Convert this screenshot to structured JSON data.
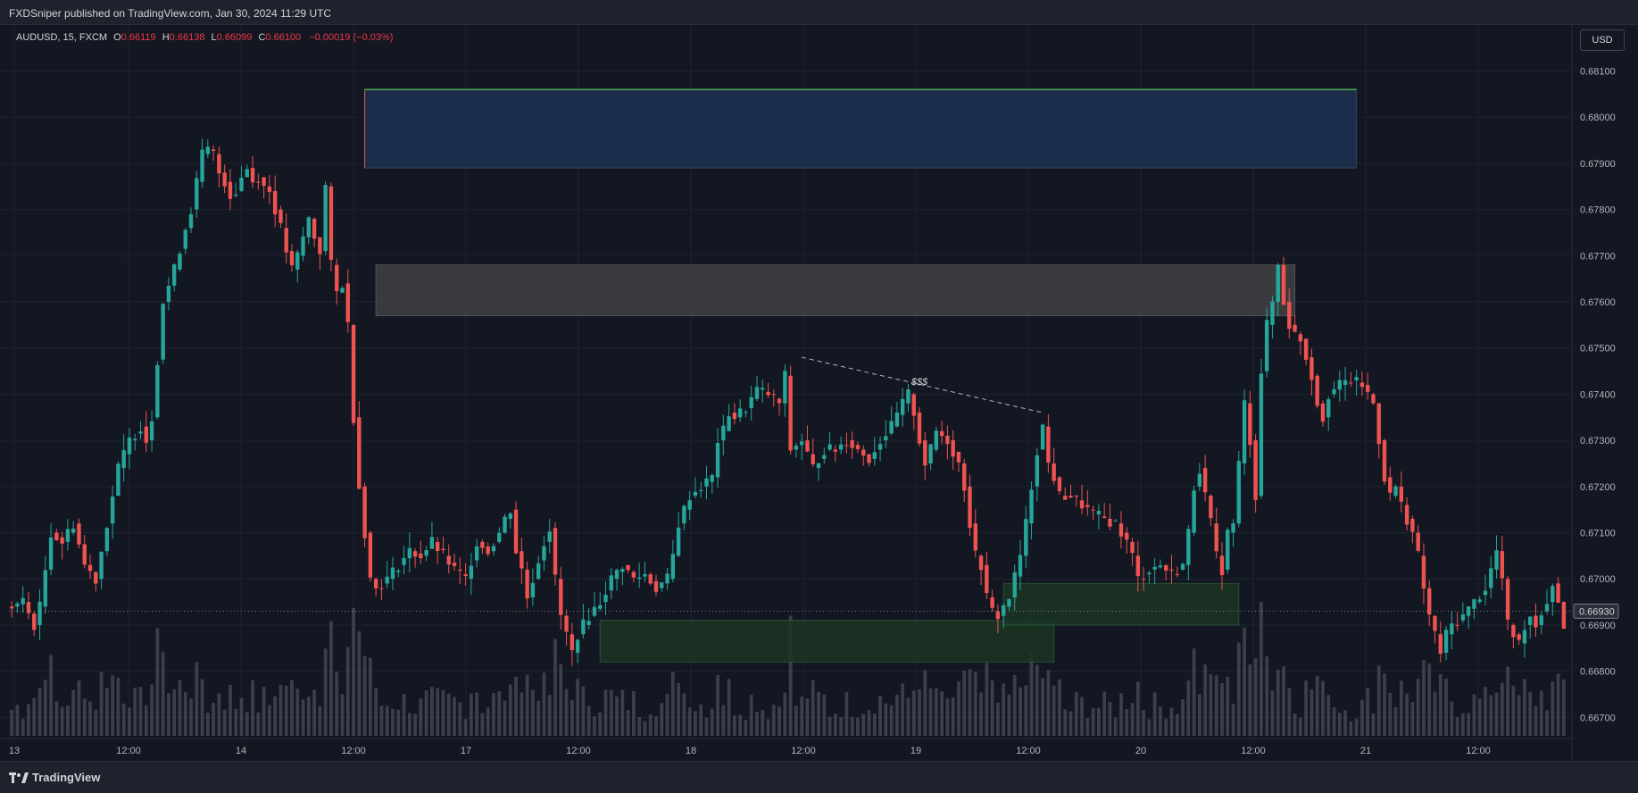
{
  "header": {
    "published_text": "FXDSniper published on TradingView.com, Jan 30, 2024 11:29 UTC"
  },
  "legend": {
    "symbol": "AUDUSD, 15, FXCM",
    "o_label": "O",
    "o_value": "0.66119",
    "h_label": "H",
    "h_value": "0.66138",
    "l_label": "L",
    "l_value": "0.66099",
    "c_label": "C",
    "c_value": "0.66100",
    "change": "−0.00019 (−0.03%)"
  },
  "currency_button": "USD",
  "footer": {
    "brand": "TradingView"
  },
  "colors": {
    "background": "#131722",
    "grid": "#1f2330",
    "up": "#26a69a",
    "down": "#ef5350",
    "volume": "#5d606b",
    "supply_zone_fill": "#1e3050",
    "supply_zone_border": "#4caf50",
    "gray_zone_fill": "#4a4a4a",
    "demand_zone_fill": "#1b3524",
    "trendline": "#b2b5be",
    "price_label_bg": "#2a2e39"
  },
  "chart_data": {
    "type": "candlestick",
    "symbol": "AUDUSD",
    "timeframe": "15",
    "y_range": [
      0.6666,
      0.6819
    ],
    "y_ticks": [
      "0.68100",
      "0.68000",
      "0.67900",
      "0.67800",
      "0.67700",
      "0.67600",
      "0.67500",
      "0.67400",
      "0.67300",
      "0.67200",
      "0.67100",
      "0.67000",
      "0.66900",
      "0.66800",
      "0.66700"
    ],
    "x_ticks": [
      "13",
      "12:00",
      "14",
      "12:00",
      "17",
      "12:00",
      "18",
      "12:00",
      "19",
      "12:00",
      "20",
      "12:00",
      "21",
      "12:00"
    ],
    "current_price": "0.66930",
    "path_points": [
      [
        0,
        0.6694
      ],
      [
        2,
        0.6695
      ],
      [
        4,
        0.669
      ],
      [
        5,
        0.6694
      ],
      [
        7,
        0.671
      ],
      [
        9,
        0.6708
      ],
      [
        11,
        0.6712
      ],
      [
        13,
        0.6703
      ],
      [
        15,
        0.67
      ],
      [
        17,
        0.6712
      ],
      [
        19,
        0.6724
      ],
      [
        21,
        0.673
      ],
      [
        23,
        0.6733
      ],
      [
        24,
        0.673
      ],
      [
        25,
        0.6735
      ],
      [
        27,
        0.676
      ],
      [
        29,
        0.6767
      ],
      [
        31,
        0.6776
      ],
      [
        32,
        0.678
      ],
      [
        33,
        0.6786
      ],
      [
        34,
        0.6792
      ],
      [
        35,
        0.6793
      ],
      [
        36,
        0.6792
      ],
      [
        37,
        0.6788
      ],
      [
        38,
        0.6786
      ],
      [
        39,
        0.6783
      ],
      [
        40,
        0.6784
      ],
      [
        41,
        0.6787
      ],
      [
        42,
        0.6789
      ],
      [
        43,
        0.6786
      ],
      [
        44,
        0.6787
      ],
      [
        45,
        0.6785
      ],
      [
        46,
        0.6784
      ],
      [
        47,
        0.678
      ],
      [
        48,
        0.6776
      ],
      [
        49,
        0.6771
      ],
      [
        50,
        0.6767
      ],
      [
        51,
        0.677
      ],
      [
        52,
        0.6774
      ],
      [
        53,
        0.6778
      ],
      [
        54,
        0.6774
      ],
      [
        55,
        0.6771
      ],
      [
        56,
        0.6785
      ],
      [
        57,
        0.6768
      ],
      [
        58,
        0.6762
      ],
      [
        59,
        0.6764
      ],
      [
        60,
        0.6755
      ],
      [
        61,
        0.6735
      ],
      [
        62,
        0.672
      ],
      [
        63,
        0.671
      ],
      [
        64,
        0.67
      ],
      [
        65,
        0.6698
      ],
      [
        67,
        0.67
      ],
      [
        69,
        0.6703
      ],
      [
        71,
        0.6706
      ],
      [
        73,
        0.6705
      ],
      [
        75,
        0.6708
      ],
      [
        77,
        0.6705
      ],
      [
        79,
        0.6702
      ],
      [
        81,
        0.67
      ],
      [
        83,
        0.6708
      ],
      [
        85,
        0.6706
      ],
      [
        87,
        0.671
      ],
      [
        88,
        0.6713
      ],
      [
        89,
        0.6715
      ],
      [
        90,
        0.6706
      ],
      [
        91,
        0.6702
      ],
      [
        92,
        0.6696
      ],
      [
        93,
        0.67
      ],
      [
        95,
        0.6708
      ],
      [
        96,
        0.6711
      ],
      [
        97,
        0.67
      ],
      [
        98,
        0.6692
      ],
      [
        99,
        0.6688
      ],
      [
        100,
        0.6684
      ],
      [
        101,
        0.6688
      ],
      [
        103,
        0.6692
      ],
      [
        105,
        0.6695
      ],
      [
        107,
        0.67
      ],
      [
        109,
        0.6703
      ],
      [
        111,
        0.67
      ],
      [
        113,
        0.6701
      ],
      [
        115,
        0.6698
      ],
      [
        117,
        0.67
      ],
      [
        118,
        0.6705
      ],
      [
        119,
        0.6712
      ],
      [
        121,
        0.6718
      ],
      [
        123,
        0.672
      ],
      [
        125,
        0.6722
      ],
      [
        126,
        0.673
      ],
      [
        127,
        0.6732
      ],
      [
        128,
        0.6736
      ],
      [
        129,
        0.6735
      ],
      [
        131,
        0.6737
      ],
      [
        133,
        0.6741
      ],
      [
        135,
        0.674
      ],
      [
        137,
        0.6738
      ],
      [
        138,
        0.6744
      ],
      [
        139,
        0.6728
      ],
      [
        141,
        0.673
      ],
      [
        143,
        0.6724
      ],
      [
        145,
        0.6728
      ],
      [
        147,
        0.6728
      ],
      [
        149,
        0.673
      ],
      [
        151,
        0.6728
      ],
      [
        153,
        0.6726
      ],
      [
        155,
        0.673
      ],
      [
        157,
        0.6733
      ],
      [
        159,
        0.6738
      ],
      [
        160,
        0.674
      ],
      [
        161,
        0.6736
      ],
      [
        162,
        0.673
      ],
      [
        163,
        0.6725
      ],
      [
        164,
        0.6728
      ],
      [
        165,
        0.6732
      ],
      [
        167,
        0.673
      ],
      [
        169,
        0.6725
      ],
      [
        170,
        0.672
      ],
      [
        171,
        0.6712
      ],
      [
        172,
        0.6705
      ],
      [
        173,
        0.6703
      ],
      [
        174,
        0.6696
      ],
      [
        175,
        0.6693
      ],
      [
        176,
        0.6692
      ],
      [
        178,
        0.6696
      ],
      [
        180,
        0.6705
      ],
      [
        181,
        0.6712
      ],
      [
        182,
        0.672
      ],
      [
        183,
        0.6728
      ],
      [
        184,
        0.6733
      ],
      [
        185,
        0.6725
      ],
      [
        186,
        0.6722
      ],
      [
        187,
        0.6718
      ],
      [
        189,
        0.6718
      ],
      [
        191,
        0.6716
      ],
      [
        193,
        0.6714
      ],
      [
        195,
        0.6713
      ],
      [
        197,
        0.6712
      ],
      [
        199,
        0.6708
      ],
      [
        200,
        0.6705
      ],
      [
        201,
        0.67
      ],
      [
        203,
        0.6702
      ],
      [
        205,
        0.6703
      ],
      [
        207,
        0.6701
      ],
      [
        209,
        0.6703
      ],
      [
        210,
        0.671
      ],
      [
        211,
        0.672
      ],
      [
        212,
        0.6724
      ],
      [
        213,
        0.6718
      ],
      [
        214,
        0.6712
      ],
      [
        215,
        0.6705
      ],
      [
        216,
        0.6702
      ],
      [
        217,
        0.671
      ],
      [
        218,
        0.6712
      ],
      [
        219,
        0.6725
      ],
      [
        220,
        0.6738
      ],
      [
        221,
        0.673
      ],
      [
        222,
        0.6718
      ],
      [
        223,
        0.6745
      ],
      [
        224,
        0.6755
      ],
      [
        225,
        0.676
      ],
      [
        226,
        0.6768
      ],
      [
        227,
        0.676
      ],
      [
        228,
        0.6755
      ],
      [
        229,
        0.6753
      ],
      [
        230,
        0.6752
      ],
      [
        231,
        0.6748
      ],
      [
        232,
        0.6744
      ],
      [
        233,
        0.6738
      ],
      [
        234,
        0.6735
      ],
      [
        235,
        0.674
      ],
      [
        237,
        0.6742
      ],
      [
        239,
        0.6743
      ],
      [
        241,
        0.6742
      ],
      [
        243,
        0.6738
      ],
      [
        244,
        0.673
      ],
      [
        245,
        0.6722
      ],
      [
        246,
        0.6718
      ],
      [
        247,
        0.672
      ],
      [
        248,
        0.6716
      ],
      [
        249,
        0.6713
      ],
      [
        250,
        0.671
      ],
      [
        251,
        0.6705
      ],
      [
        252,
        0.6698
      ],
      [
        253,
        0.6692
      ],
      [
        254,
        0.6688
      ],
      [
        255,
        0.6684
      ],
      [
        256,
        0.6688
      ],
      [
        257,
        0.669
      ],
      [
        259,
        0.6692
      ],
      [
        261,
        0.6695
      ],
      [
        263,
        0.6698
      ],
      [
        264,
        0.6702
      ],
      [
        265,
        0.6706
      ],
      [
        266,
        0.67
      ],
      [
        267,
        0.669
      ],
      [
        268,
        0.6688
      ],
      [
        269,
        0.6686
      ],
      [
        270,
        0.669
      ],
      [
        271,
        0.6692
      ],
      [
        272,
        0.669
      ],
      [
        273,
        0.6693
      ],
      [
        274,
        0.6695
      ],
      [
        275,
        0.6699
      ],
      [
        276,
        0.6695
      ],
      [
        277,
        0.669
      ]
    ],
    "candle_count": 278,
    "zones": [
      {
        "name": "supply-zone-blue",
        "x_start": 63,
        "x_end": 240,
        "y_low": 0.6789,
        "y_high": 0.6806
      },
      {
        "name": "supply-zone-gray",
        "x_start": 65,
        "x_end": 229,
        "y_low": 0.6757,
        "y_high": 0.6768
      },
      {
        "name": "demand-zone-green-left",
        "x_start": 105,
        "x_end": 186,
        "y_low": 0.6682,
        "y_high": 0.6691
      },
      {
        "name": "demand-zone-green-right",
        "x_start": 177,
        "x_end": 219,
        "y_low": 0.669,
        "y_high": 0.6699
      }
    ],
    "trendline": {
      "x_start": 141,
      "y_start": 0.6748,
      "x_end": 184,
      "y_end": 0.6736
    },
    "annotations": [
      {
        "text": "$$$",
        "x": 162,
        "y": 0.6742
      }
    ]
  }
}
